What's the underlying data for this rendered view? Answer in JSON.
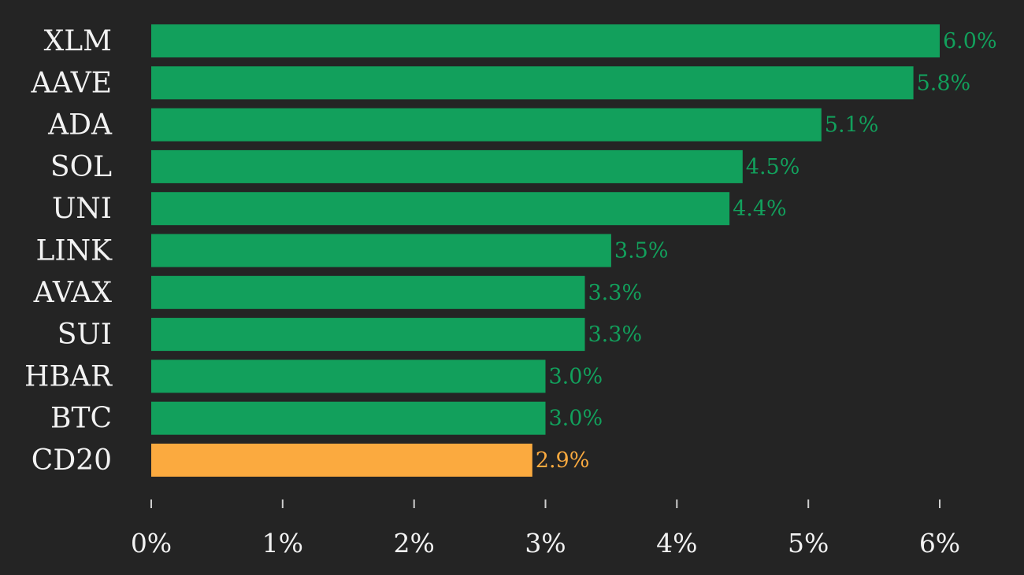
{
  "chart_data": {
    "type": "bar",
    "orientation": "horizontal",
    "categories": [
      "XLM",
      "AAVE",
      "ADA",
      "SOL",
      "UNI",
      "LINK",
      "AVAX",
      "SUI",
      "HBAR",
      "BTC",
      "CD20"
    ],
    "values": [
      6.0,
      5.8,
      5.1,
      4.5,
      4.4,
      3.5,
      3.3,
      3.3,
      3.0,
      3.0,
      2.9
    ],
    "value_labels": [
      "6.0%",
      "5.8%",
      "5.1%",
      "4.5%",
      "4.4%",
      "3.5%",
      "3.3%",
      "3.3%",
      "3.0%",
      "3.0%",
      "2.9%"
    ],
    "highlight_category": "CD20",
    "xlim": [
      0,
      6
    ],
    "x_ticks": [
      0,
      1,
      2,
      3,
      4,
      5,
      6
    ],
    "x_tick_labels": [
      "0%",
      "1%",
      "2%",
      "3%",
      "4%",
      "5%",
      "6%"
    ],
    "grid": false,
    "colors": {
      "background": "#242424",
      "bar": "#12a05c",
      "highlight_bar": "#fbaa3f",
      "label_text": "#f2f2f2"
    }
  }
}
